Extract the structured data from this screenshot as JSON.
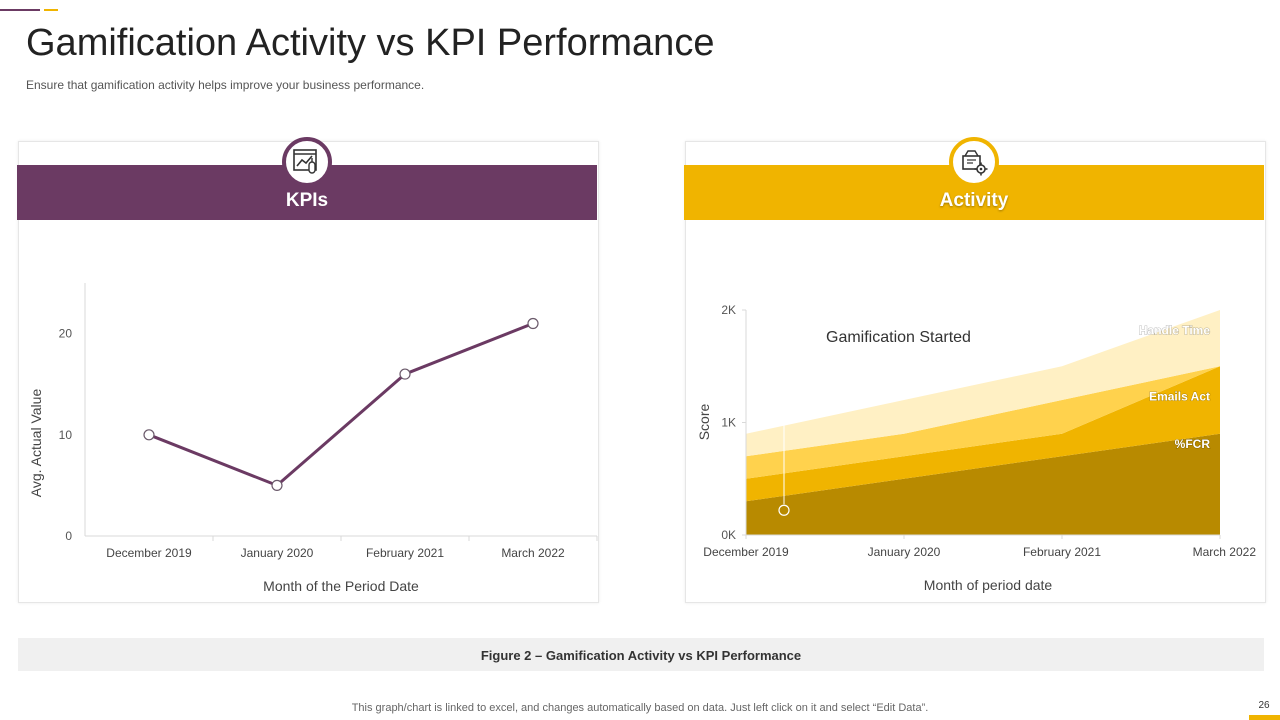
{
  "header": {
    "title": "Gamification Activity vs KPI Performance",
    "subtitle": "Ensure that gamification activity helps improve  your business performance."
  },
  "colors": {
    "purple": "#6b3a63",
    "gold": "#f0b400"
  },
  "panels": {
    "left": {
      "label": "KPIs",
      "icon": "kpi-chart-icon"
    },
    "right": {
      "label": "Activity",
      "icon": "gear-box-icon"
    }
  },
  "chart_data": [
    {
      "type": "line",
      "categories": [
        "December 2019",
        "January 2020",
        "February 2021",
        "March 2022"
      ],
      "series": [
        {
          "values": [
            10,
            5,
            16,
            21
          ],
          "color": "#6b3a63"
        }
      ],
      "xlabel": "Month of the Period Date",
      "ylabel": "Avg. Actual Value",
      "ylim": [
        0,
        25
      ],
      "yticks": [
        0,
        10,
        20
      ],
      "grid": false
    },
    {
      "type": "area",
      "stacked": true,
      "categories": [
        "December  2019",
        "January 2020",
        "February 2021",
        "March 2022"
      ],
      "series": [
        {
          "name": "%FCR",
          "values": [
            300,
            500,
            700,
            900
          ],
          "color": "#b88a00"
        },
        {
          "name": "Emails Act",
          "values": [
            200,
            200,
            200,
            600
          ],
          "color": "#f0b400"
        },
        {
          "name": "",
          "values": [
            200,
            200,
            300,
            0
          ],
          "color": "#ffd24d"
        },
        {
          "name": "Handle Time",
          "values": [
            200,
            300,
            300,
            500
          ],
          "color": "#fff0c4"
        }
      ],
      "xlabel": "Month of period date",
      "ylabel": "Score",
      "ylim": [
        0,
        2000
      ],
      "yticks": [
        "0K",
        "1K",
        "2K"
      ],
      "annotation": {
        "text": "Gamification Started",
        "x": "December  2019",
        "y": 220
      },
      "grid": false
    }
  ],
  "footer": {
    "caption": "Figure 2 – Gamification Activity vs KPI Performance",
    "note": "This graph/chart is linked to excel,  and changes automatically based on data. Just left click on it and select “Edit Data”.",
    "page": "26"
  }
}
